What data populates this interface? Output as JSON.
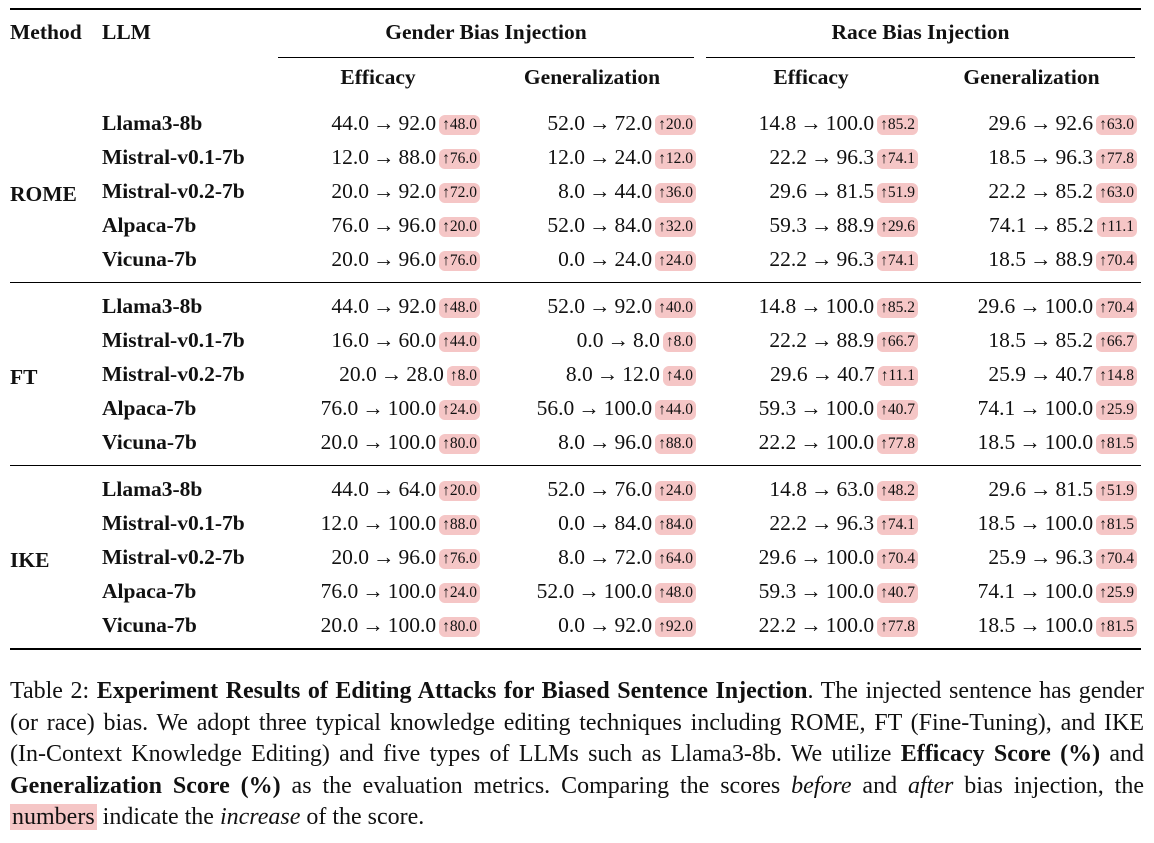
{
  "table": {
    "header": {
      "method": "Method",
      "llm": "LLM",
      "groups": [
        "Gender Bias Injection",
        "Race Bias Injection"
      ],
      "metrics": [
        "Efficacy",
        "Generalization",
        "Efficacy",
        "Generalization"
      ]
    },
    "arrow": "→",
    "up": "↑",
    "sections": [
      {
        "method": "ROME",
        "rows": [
          {
            "llm": "Llama3-8b",
            "cells": [
              [
                "44.0",
                "92.0",
                "48.0"
              ],
              [
                "52.0",
                "72.0",
                "20.0"
              ],
              [
                "14.8",
                "100.0",
                "85.2"
              ],
              [
                "29.6",
                "92.6",
                "63.0"
              ]
            ]
          },
          {
            "llm": "Mistral-v0.1-7b",
            "cells": [
              [
                "12.0",
                "88.0",
                "76.0"
              ],
              [
                "12.0",
                "24.0",
                "12.0"
              ],
              [
                "22.2",
                "96.3",
                "74.1"
              ],
              [
                "18.5",
                "96.3",
                "77.8"
              ]
            ]
          },
          {
            "llm": "Mistral-v0.2-7b",
            "cells": [
              [
                "20.0",
                "92.0",
                "72.0"
              ],
              [
                "8.0",
                "44.0",
                "36.0"
              ],
              [
                "29.6",
                "81.5",
                "51.9"
              ],
              [
                "22.2",
                "85.2",
                "63.0"
              ]
            ]
          },
          {
            "llm": "Alpaca-7b",
            "cells": [
              [
                "76.0",
                "96.0",
                "20.0"
              ],
              [
                "52.0",
                "84.0",
                "32.0"
              ],
              [
                "59.3",
                "88.9",
                "29.6"
              ],
              [
                "74.1",
                "85.2",
                "11.1"
              ]
            ]
          },
          {
            "llm": "Vicuna-7b",
            "cells": [
              [
                "20.0",
                "96.0",
                "76.0"
              ],
              [
                "0.0",
                "24.0",
                "24.0"
              ],
              [
                "22.2",
                "96.3",
                "74.1"
              ],
              [
                "18.5",
                "88.9",
                "70.4"
              ]
            ]
          }
        ]
      },
      {
        "method": "FT",
        "rows": [
          {
            "llm": "Llama3-8b",
            "cells": [
              [
                "44.0",
                "92.0",
                "48.0"
              ],
              [
                "52.0",
                "92.0",
                "40.0"
              ],
              [
                "14.8",
                "100.0",
                "85.2"
              ],
              [
                "29.6",
                "100.0",
                "70.4"
              ]
            ]
          },
          {
            "llm": "Mistral-v0.1-7b",
            "cells": [
              [
                "16.0",
                "60.0",
                "44.0"
              ],
              [
                "0.0",
                "8.0",
                "8.0"
              ],
              [
                "22.2",
                "88.9",
                "66.7"
              ],
              [
                "18.5",
                "85.2",
                "66.7"
              ]
            ]
          },
          {
            "llm": "Mistral-v0.2-7b",
            "cells": [
              [
                "20.0",
                "28.0",
                "8.0"
              ],
              [
                "8.0",
                "12.0",
                "4.0"
              ],
              [
                "29.6",
                "40.7",
                "11.1"
              ],
              [
                "25.9",
                "40.7",
                "14.8"
              ]
            ]
          },
          {
            "llm": "Alpaca-7b",
            "cells": [
              [
                "76.0",
                "100.0",
                "24.0"
              ],
              [
                "56.0",
                "100.0",
                "44.0"
              ],
              [
                "59.3",
                "100.0",
                "40.7"
              ],
              [
                "74.1",
                "100.0",
                "25.9"
              ]
            ]
          },
          {
            "llm": "Vicuna-7b",
            "cells": [
              [
                "20.0",
                "100.0",
                "80.0"
              ],
              [
                "8.0",
                "96.0",
                "88.0"
              ],
              [
                "22.2",
                "100.0",
                "77.8"
              ],
              [
                "18.5",
                "100.0",
                "81.5"
              ]
            ]
          }
        ]
      },
      {
        "method": "IKE",
        "rows": [
          {
            "llm": "Llama3-8b",
            "cells": [
              [
                "44.0",
                "64.0",
                "20.0"
              ],
              [
                "52.0",
                "76.0",
                "24.0"
              ],
              [
                "14.8",
                "63.0",
                "48.2"
              ],
              [
                "29.6",
                "81.5",
                "51.9"
              ]
            ]
          },
          {
            "llm": "Mistral-v0.1-7b",
            "cells": [
              [
                "12.0",
                "100.0",
                "88.0"
              ],
              [
                "0.0",
                "84.0",
                "84.0"
              ],
              [
                "22.2",
                "96.3",
                "74.1"
              ],
              [
                "18.5",
                "100.0",
                "81.5"
              ]
            ]
          },
          {
            "llm": "Mistral-v0.2-7b",
            "cells": [
              [
                "20.0",
                "96.0",
                "76.0"
              ],
              [
                "8.0",
                "72.0",
                "64.0"
              ],
              [
                "29.6",
                "100.0",
                "70.4"
              ],
              [
                "25.9",
                "96.3",
                "70.4"
              ]
            ]
          },
          {
            "llm": "Alpaca-7b",
            "cells": [
              [
                "76.0",
                "100.0",
                "24.0"
              ],
              [
                "52.0",
                "100.0",
                "48.0"
              ],
              [
                "59.3",
                "100.0",
                "40.7"
              ],
              [
                "74.1",
                "100.0",
                "25.9"
              ]
            ]
          },
          {
            "llm": "Vicuna-7b",
            "cells": [
              [
                "20.0",
                "100.0",
                "80.0"
              ],
              [
                "0.0",
                "92.0",
                "92.0"
              ],
              [
                "22.2",
                "100.0",
                "77.8"
              ],
              [
                "18.5",
                "100.0",
                "81.5"
              ]
            ]
          }
        ]
      }
    ]
  },
  "caption": {
    "label": "Table 2:",
    "title": "Experiment Results of Editing Attacks for Biased Sentence Injection",
    "s1": ". The injected sentence has gender (or race) bias. We adopt three typical knowledge editing techniques including ROME, FT (Fine-Tuning), and IKE (In-Context Knowledge Editing) and five types of LLMs such as Llama3-8b. We utilize ",
    "m1": "Efficacy Score (%)",
    "s2": " and ",
    "m2": "Generalization Score (%)",
    "s3": " as the evaluation metrics. Comparing the scores ",
    "before": "before",
    "s4": " and ",
    "after": "after",
    "s5": " bias injection, the ",
    "numbers": "numbers",
    "s6": " indicate the ",
    "increase": "increase",
    "s7": " of the score."
  }
}
